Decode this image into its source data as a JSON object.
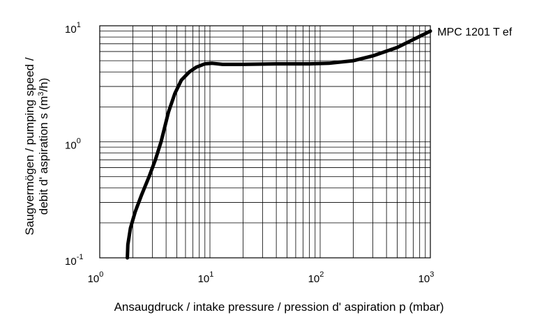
{
  "chart_data": {
    "type": "line",
    "xscale": "log",
    "yscale": "log",
    "xlim": [
      1,
      1000
    ],
    "ylim": [
      0.1,
      10
    ],
    "grid": true,
    "xlabel": "Ansaugdruck / intake pressure / pression d' aspiration p (mbar)",
    "ylabel_line1": "Saugvermögen / pumping speed /",
    "ylabel_line2_prefix": "debit d' aspiration s (m",
    "ylabel_line2_sup": "3",
    "ylabel_line2_suffix": "/h)",
    "xticks": [
      {
        "value": 1,
        "base": "10",
        "exp": "0"
      },
      {
        "value": 10,
        "base": "10",
        "exp": "1"
      },
      {
        "value": 100,
        "base": "10",
        "exp": "2"
      },
      {
        "value": 1000,
        "base": "10",
        "exp": "3"
      }
    ],
    "yticks": [
      {
        "value": 0.1,
        "base": "10",
        "exp": "-1"
      },
      {
        "value": 1,
        "base": "10",
        "exp": "0"
      },
      {
        "value": 10,
        "base": "10",
        "exp": "1"
      }
    ],
    "series": [
      {
        "name": "MPC 1201 T ef",
        "points": [
          [
            1.78,
            0.1
          ],
          [
            1.8,
            0.13
          ],
          [
            1.9,
            0.18
          ],
          [
            2.1,
            0.25
          ],
          [
            2.4,
            0.35
          ],
          [
            2.8,
            0.5
          ],
          [
            3.2,
            0.7
          ],
          [
            3.6,
            1.0
          ],
          [
            4.2,
            1.8
          ],
          [
            4.8,
            2.6
          ],
          [
            5.5,
            3.4
          ],
          [
            6.5,
            4.0
          ],
          [
            7.5,
            4.4
          ],
          [
            9.0,
            4.7
          ],
          [
            10.5,
            4.75
          ],
          [
            13,
            4.65
          ],
          [
            20,
            4.65
          ],
          [
            40,
            4.7
          ],
          [
            80,
            4.7
          ],
          [
            120,
            4.75
          ],
          [
            200,
            5.0
          ],
          [
            300,
            5.5
          ],
          [
            500,
            6.5
          ],
          [
            700,
            7.6
          ],
          [
            1000,
            9.0
          ]
        ]
      }
    ]
  }
}
